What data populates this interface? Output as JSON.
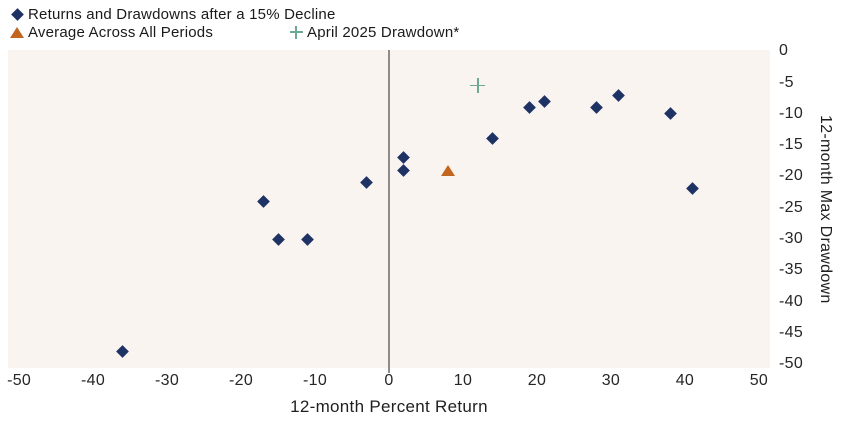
{
  "legend": {
    "items": [
      {
        "label": "Returns and Drawdowns after a 15% Decline",
        "marker": "diamond"
      },
      {
        "label": "Average Across All Periods",
        "marker": "triangle"
      },
      {
        "label": "April 2025 Drawdown*",
        "marker": "plus"
      }
    ]
  },
  "chart_data": {
    "type": "scatter",
    "xlabel": "12-month Percent Return",
    "ylabel": "12-month Max Drawdown",
    "xlim": [
      -51.5,
      51.5
    ],
    "ylim": [
      -50.6,
      0.2
    ],
    "xticks": [
      -50,
      -40,
      -30,
      -20,
      -10,
      0,
      10,
      20,
      30,
      40,
      50
    ],
    "yticks": [
      0,
      -5,
      -10,
      -15,
      -20,
      -25,
      -30,
      -35,
      -40,
      -45,
      -50
    ],
    "grid": false,
    "legend_position": "top-left",
    "plot_bg": "#FAF4F1",
    "zero_line_x": 0,
    "zero_line_color": "#8C8C8C",
    "series": [
      {
        "name": "Returns and Drawdowns after a 15% Decline",
        "marker": "diamond",
        "color": "#1E3264",
        "points": [
          [
            -36,
            -48
          ],
          [
            -17,
            -24
          ],
          [
            -15,
            -30
          ],
          [
            -11,
            -30
          ],
          [
            -3,
            -21
          ],
          [
            2,
            -17
          ],
          [
            2,
            -19
          ],
          [
            14,
            -14
          ],
          [
            19,
            -9
          ],
          [
            21,
            -8
          ],
          [
            28,
            -9
          ],
          [
            31,
            -7
          ],
          [
            38,
            -10
          ],
          [
            41,
            -22
          ]
        ]
      },
      {
        "name": "Average Across All Periods",
        "marker": "triangle",
        "color": "#C2661F",
        "points": [
          [
            8,
            -19
          ]
        ]
      },
      {
        "name": "April 2025 Drawdown*",
        "marker": "plus",
        "color": "#6BA995",
        "points": [
          [
            12,
            -5.5
          ]
        ]
      }
    ]
  }
}
